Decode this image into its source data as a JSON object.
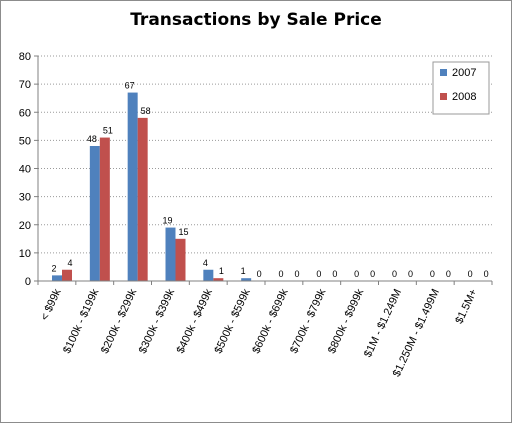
{
  "chart_data": {
    "type": "bar",
    "title": "Transactions by Sale Price",
    "xlabel": "",
    "ylabel": "",
    "ylim": [
      0,
      80
    ],
    "yticks": [
      0,
      10,
      20,
      30,
      40,
      50,
      60,
      70,
      80
    ],
    "grid": true,
    "legend_position": "right",
    "categories": [
      "< $99k",
      "$100k - $199k",
      "$200k - $299k",
      "$300k - $399k",
      "$400k - $499k",
      "$500k - $599k",
      "$600k - $699k",
      "$700k - $799k",
      "$800k - $999k",
      "$1M - $1.249M",
      "$1.250M - $1.499M",
      "$1.5M+"
    ],
    "series": [
      {
        "name": "2007",
        "color": "#4f81bd",
        "values": [
          2,
          48,
          67,
          19,
          4,
          1,
          0,
          0,
          0,
          0,
          0,
          0
        ]
      },
      {
        "name": "2008",
        "color": "#c0504d",
        "values": [
          4,
          51,
          58,
          15,
          1,
          0,
          0,
          0,
          0,
          0,
          0,
          0
        ]
      }
    ]
  }
}
